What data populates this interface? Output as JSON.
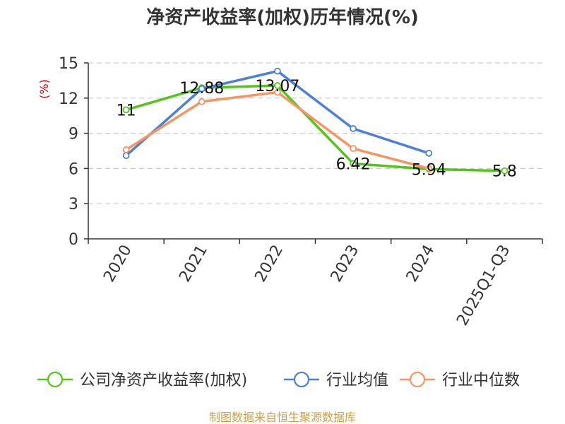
{
  "chart_data": {
    "type": "line",
    "title": "净资产收益率(加权)历年情况(%)",
    "ylabel": "(%)",
    "categories": [
      "2020",
      "2021",
      "2022",
      "2023",
      "2024",
      "2025Q1-Q3"
    ],
    "ylim": [
      0,
      15
    ],
    "yticks": [
      0,
      3,
      6,
      9,
      12,
      15
    ],
    "grid": true,
    "legend_position": "bottom",
    "series": [
      {
        "name": "公司净资产收益率(加权)",
        "color": "#52c41a",
        "values": [
          11,
          12.88,
          13.07,
          6.42,
          5.94,
          5.8
        ],
        "labels": [
          "11",
          "12.88",
          "13.07",
          "6.42",
          "5.94",
          "5.8"
        ]
      },
      {
        "name": "行业均值",
        "color": "#4e7fd6",
        "values": [
          7.1,
          12.8,
          14.3,
          9.4,
          7.3,
          null
        ]
      },
      {
        "name": "行业中位数",
        "color": "#f79562",
        "values": [
          7.6,
          11.7,
          12.5,
          7.7,
          6.0,
          null
        ]
      }
    ]
  },
  "footer": {
    "source": "制图数据来自恒生聚源数据库"
  }
}
